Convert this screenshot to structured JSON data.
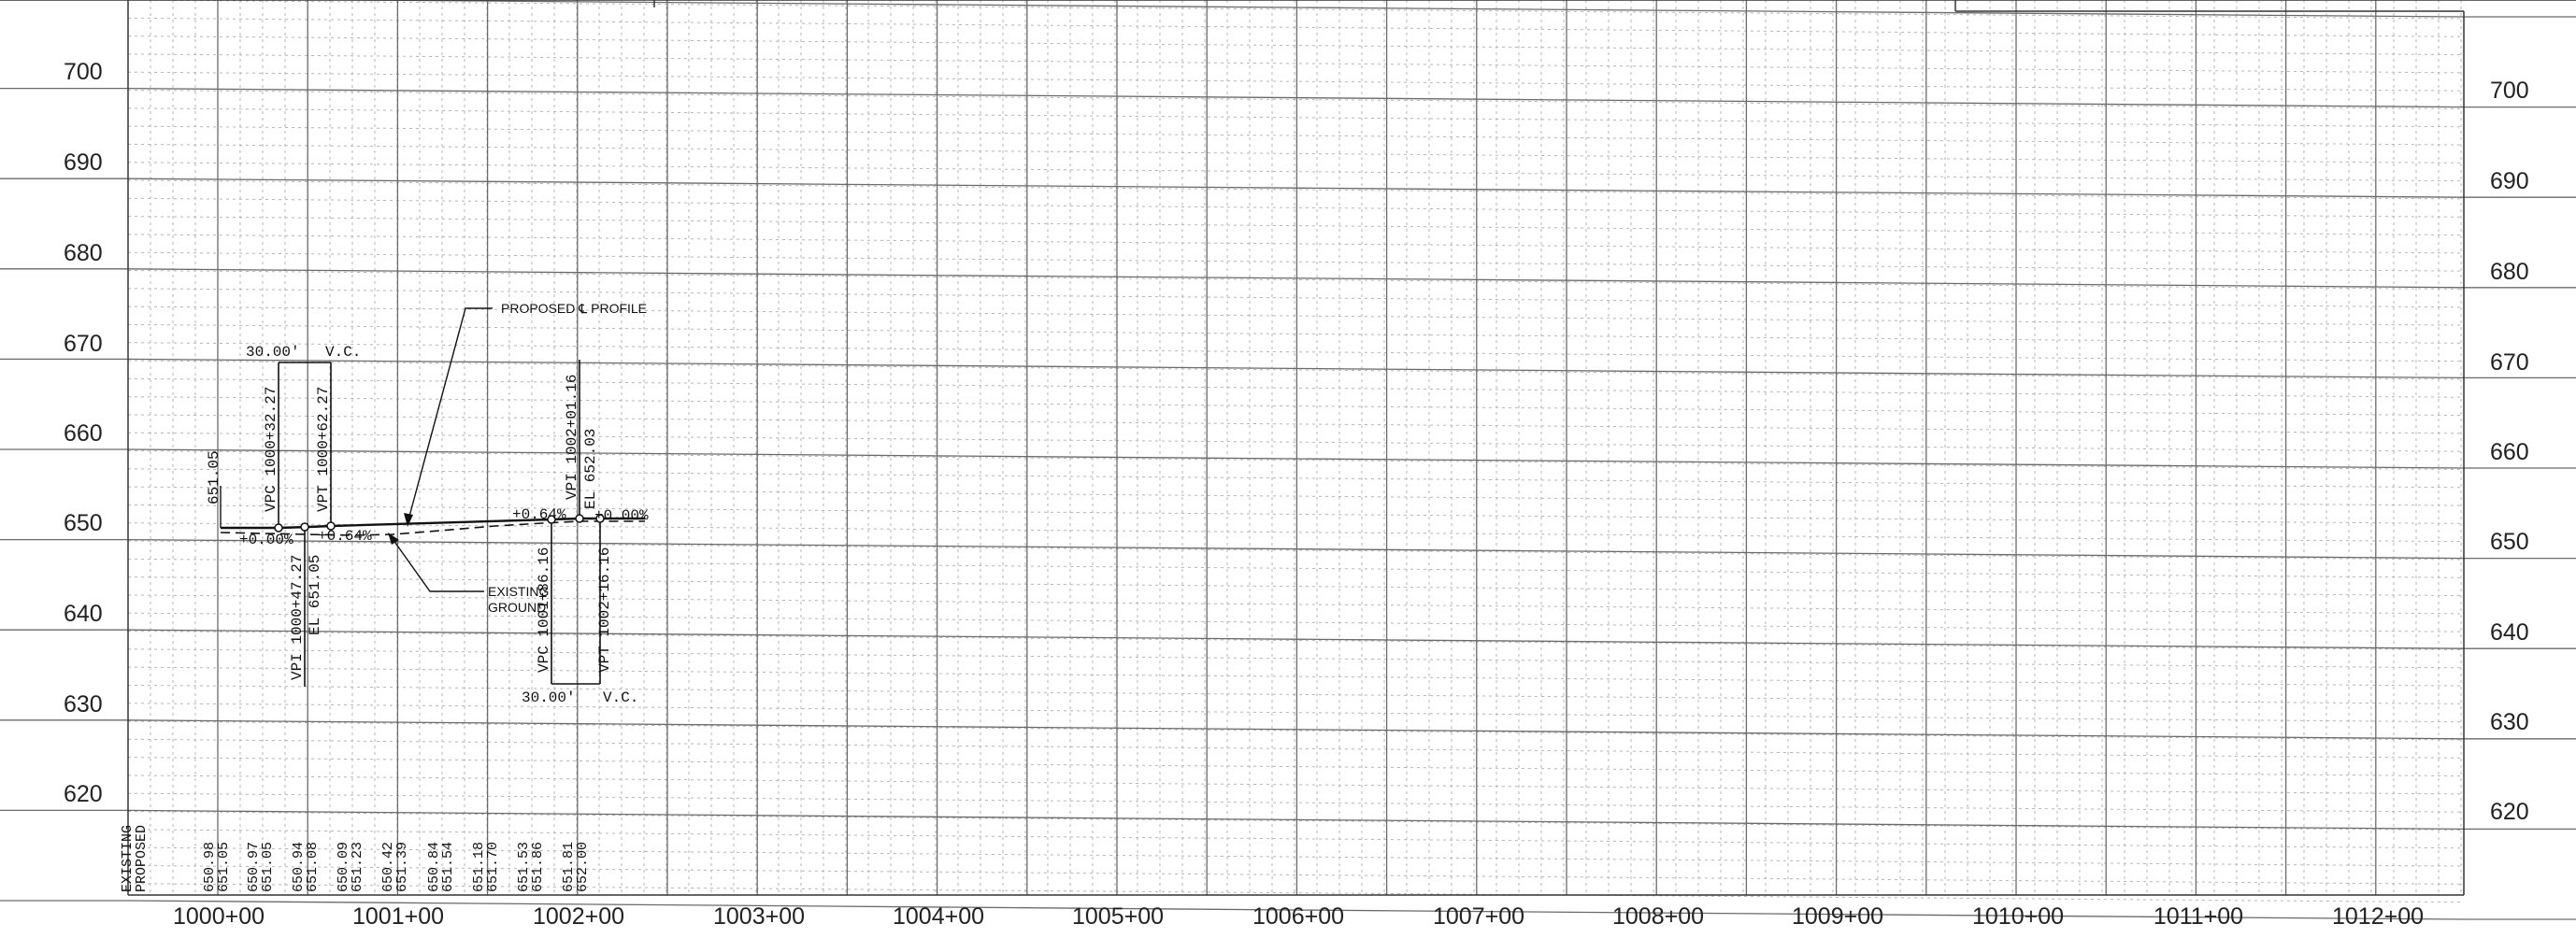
{
  "profile": {
    "y_axis_left": [
      "700",
      "690",
      "680",
      "670",
      "660",
      "650",
      "640",
      "630",
      "620"
    ],
    "y_axis_right": [
      "700",
      "690",
      "680",
      "670",
      "660",
      "650",
      "640",
      "630",
      "620"
    ],
    "stations": [
      "1000+00",
      "1001+00",
      "1002+00",
      "1003+00",
      "1004+00",
      "1005+00",
      "1006+00",
      "1007+00",
      "1008+00",
      "1009+00",
      "1010+00",
      "1011+00",
      "1012+00"
    ],
    "table_labels": {
      "existing": "EXISTING",
      "proposed": "PROPOSED"
    },
    "elevations": [
      {
        "existing": "650.98",
        "proposed": "651.05"
      },
      {
        "existing": "650.97",
        "proposed": "651.05"
      },
      {
        "existing": "650.94",
        "proposed": "651.08"
      },
      {
        "existing": "650.09",
        "proposed": "651.23"
      },
      {
        "existing": "650.42",
        "proposed": "651.39"
      },
      {
        "existing": "650.84",
        "proposed": "651.54"
      },
      {
        "existing": "651.18",
        "proposed": "651.70"
      },
      {
        "existing": "651.53",
        "proposed": "651.86"
      },
      {
        "existing": "651.81",
        "proposed": "652.00"
      }
    ],
    "curve1": {
      "length": "30.00'",
      "vc": "V.C.",
      "vpc": "VPC 1000+32.27",
      "vpt": "VPT 1000+62.27",
      "vpi": "VPI 1000+47.27",
      "el": "EL 651.05",
      "grade_in": "+0.00%",
      "grade_out": "+0.64%",
      "begin_elev": "651.05"
    },
    "curve2": {
      "length": "30.00'",
      "vc": "V.C.",
      "vpc": "VPC 1001+86.16",
      "vpt": "VPT 1002+16.16",
      "vpi": "VPI 1002+01.16",
      "el": "EL 652.03",
      "grade_in": "+0.64%",
      "grade_out": "+0.00%"
    },
    "callouts": {
      "proposed": "PROPOSED ℄ PROFILE",
      "existing_line1": "EXISTING",
      "existing_line2": "GROUND"
    }
  }
}
